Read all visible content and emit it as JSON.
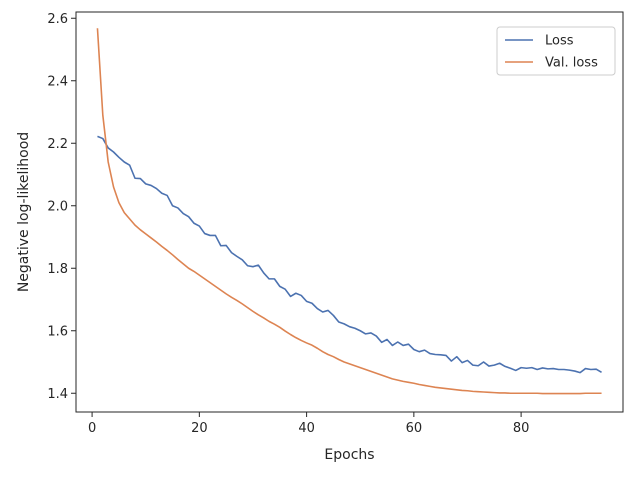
{
  "chart_data": {
    "type": "line",
    "title": "",
    "xlabel": "Epochs",
    "ylabel": "Negative log-likelihood",
    "xlim": [
      -3,
      99
    ],
    "ylim": [
      1.34,
      2.62
    ],
    "xticks": [
      0,
      20,
      40,
      60,
      80
    ],
    "yticks": [
      1.4,
      1.6,
      1.8,
      2.0,
      2.2,
      2.4,
      2.6
    ],
    "xtick_labels": [
      "0",
      "20",
      "40",
      "60",
      "80"
    ],
    "ytick_labels": [
      "1.4",
      "1.6",
      "1.8",
      "2.0",
      "2.2",
      "2.4",
      "2.6"
    ],
    "grid": false,
    "legend_position": "top-right",
    "series": [
      {
        "name": "Loss",
        "color": "#4c72b0",
        "points": [
          [
            1,
            2.222
          ],
          [
            2,
            2.215
          ],
          [
            3,
            2.185
          ],
          [
            4,
            2.172
          ],
          [
            5,
            2.155
          ],
          [
            6,
            2.14
          ],
          [
            7,
            2.13
          ],
          [
            8,
            2.088
          ],
          [
            9,
            2.087
          ],
          [
            10,
            2.07
          ],
          [
            11,
            2.065
          ],
          [
            12,
            2.055
          ],
          [
            13,
            2.04
          ],
          [
            14,
            2.033
          ],
          [
            15,
            2.0
          ],
          [
            16,
            1.993
          ],
          [
            17,
            1.975
          ],
          [
            18,
            1.965
          ],
          [
            19,
            1.944
          ],
          [
            20,
            1.935
          ],
          [
            21,
            1.911
          ],
          [
            22,
            1.905
          ],
          [
            23,
            1.905
          ],
          [
            24,
            1.872
          ],
          [
            25,
            1.873
          ],
          [
            26,
            1.85
          ],
          [
            27,
            1.838
          ],
          [
            28,
            1.827
          ],
          [
            29,
            1.808
          ],
          [
            30,
            1.805
          ],
          [
            31,
            1.81
          ],
          [
            32,
            1.785
          ],
          [
            33,
            1.766
          ],
          [
            34,
            1.766
          ],
          [
            35,
            1.742
          ],
          [
            36,
            1.733
          ],
          [
            37,
            1.71
          ],
          [
            38,
            1.72
          ],
          [
            39,
            1.713
          ],
          [
            40,
            1.694
          ],
          [
            41,
            1.688
          ],
          [
            42,
            1.671
          ],
          [
            43,
            1.66
          ],
          [
            44,
            1.665
          ],
          [
            45,
            1.649
          ],
          [
            46,
            1.628
          ],
          [
            47,
            1.622
          ],
          [
            48,
            1.613
          ],
          [
            49,
            1.608
          ],
          [
            50,
            1.6
          ],
          [
            51,
            1.59
          ],
          [
            52,
            1.593
          ],
          [
            53,
            1.583
          ],
          [
            54,
            1.563
          ],
          [
            55,
            1.572
          ],
          [
            56,
            1.553
          ],
          [
            57,
            1.564
          ],
          [
            58,
            1.553
          ],
          [
            59,
            1.557
          ],
          [
            60,
            1.54
          ],
          [
            61,
            1.533
          ],
          [
            62,
            1.538
          ],
          [
            63,
            1.527
          ],
          [
            64,
            1.524
          ],
          [
            65,
            1.523
          ],
          [
            66,
            1.521
          ],
          [
            67,
            1.503
          ],
          [
            68,
            1.517
          ],
          [
            69,
            1.498
          ],
          [
            70,
            1.505
          ],
          [
            71,
            1.49
          ],
          [
            72,
            1.488
          ],
          [
            73,
            1.5
          ],
          [
            74,
            1.487
          ],
          [
            75,
            1.49
          ],
          [
            76,
            1.496
          ],
          [
            77,
            1.486
          ],
          [
            78,
            1.48
          ],
          [
            79,
            1.473
          ],
          [
            80,
            1.482
          ],
          [
            81,
            1.48
          ],
          [
            82,
            1.482
          ],
          [
            83,
            1.476
          ],
          [
            84,
            1.481
          ],
          [
            85,
            1.478
          ],
          [
            86,
            1.479
          ],
          [
            87,
            1.476
          ],
          [
            88,
            1.476
          ],
          [
            89,
            1.474
          ],
          [
            90,
            1.471
          ],
          [
            91,
            1.466
          ],
          [
            92,
            1.479
          ],
          [
            93,
            1.476
          ],
          [
            94,
            1.477
          ],
          [
            95,
            1.467
          ]
        ]
      },
      {
        "name": "Val. loss",
        "color": "#dd8452",
        "points": [
          [
            1,
            2.568
          ],
          [
            2,
            2.29
          ],
          [
            3,
            2.14
          ],
          [
            4,
            2.06
          ],
          [
            5,
            2.01
          ],
          [
            6,
            1.978
          ],
          [
            7,
            1.958
          ],
          [
            8,
            1.938
          ],
          [
            9,
            1.923
          ],
          [
            10,
            1.91
          ],
          [
            11,
            1.897
          ],
          [
            12,
            1.884
          ],
          [
            13,
            1.87
          ],
          [
            14,
            1.857
          ],
          [
            15,
            1.843
          ],
          [
            16,
            1.828
          ],
          [
            17,
            1.814
          ],
          [
            18,
            1.8
          ],
          [
            19,
            1.79
          ],
          [
            20,
            1.778
          ],
          [
            21,
            1.766
          ],
          [
            22,
            1.754
          ],
          [
            23,
            1.742
          ],
          [
            24,
            1.73
          ],
          [
            25,
            1.718
          ],
          [
            26,
            1.707
          ],
          [
            27,
            1.697
          ],
          [
            28,
            1.686
          ],
          [
            29,
            1.674
          ],
          [
            30,
            1.662
          ],
          [
            31,
            1.651
          ],
          [
            32,
            1.641
          ],
          [
            33,
            1.63
          ],
          [
            34,
            1.621
          ],
          [
            35,
            1.611
          ],
          [
            36,
            1.599
          ],
          [
            37,
            1.588
          ],
          [
            38,
            1.578
          ],
          [
            39,
            1.569
          ],
          [
            40,
            1.561
          ],
          [
            41,
            1.554
          ],
          [
            42,
            1.544
          ],
          [
            43,
            1.533
          ],
          [
            44,
            1.524
          ],
          [
            45,
            1.517
          ],
          [
            46,
            1.508
          ],
          [
            47,
            1.5
          ],
          [
            48,
            1.494
          ],
          [
            49,
            1.488
          ],
          [
            50,
            1.482
          ],
          [
            51,
            1.476
          ],
          [
            52,
            1.47
          ],
          [
            53,
            1.464
          ],
          [
            54,
            1.458
          ],
          [
            55,
            1.452
          ],
          [
            56,
            1.446
          ],
          [
            57,
            1.442
          ],
          [
            58,
            1.438
          ],
          [
            59,
            1.435
          ],
          [
            60,
            1.432
          ],
          [
            61,
            1.428
          ],
          [
            62,
            1.425
          ],
          [
            63,
            1.422
          ],
          [
            64,
            1.419
          ],
          [
            65,
            1.417
          ],
          [
            66,
            1.415
          ],
          [
            67,
            1.413
          ],
          [
            68,
            1.411
          ],
          [
            69,
            1.409
          ],
          [
            70,
            1.408
          ],
          [
            71,
            1.406
          ],
          [
            72,
            1.405
          ],
          [
            73,
            1.404
          ],
          [
            74,
            1.403
          ],
          [
            75,
            1.402
          ],
          [
            76,
            1.401
          ],
          [
            77,
            1.401
          ],
          [
            78,
            1.4
          ],
          [
            79,
            1.4
          ],
          [
            80,
            1.4
          ],
          [
            81,
            1.4
          ],
          [
            82,
            1.4
          ],
          [
            83,
            1.4
          ],
          [
            84,
            1.399
          ],
          [
            85,
            1.399
          ],
          [
            86,
            1.399
          ],
          [
            87,
            1.399
          ],
          [
            88,
            1.399
          ],
          [
            89,
            1.399
          ],
          [
            90,
            1.399
          ],
          [
            91,
            1.399
          ],
          [
            92,
            1.4
          ],
          [
            93,
            1.4
          ],
          [
            94,
            1.4
          ],
          [
            95,
            1.4
          ]
        ]
      }
    ]
  }
}
